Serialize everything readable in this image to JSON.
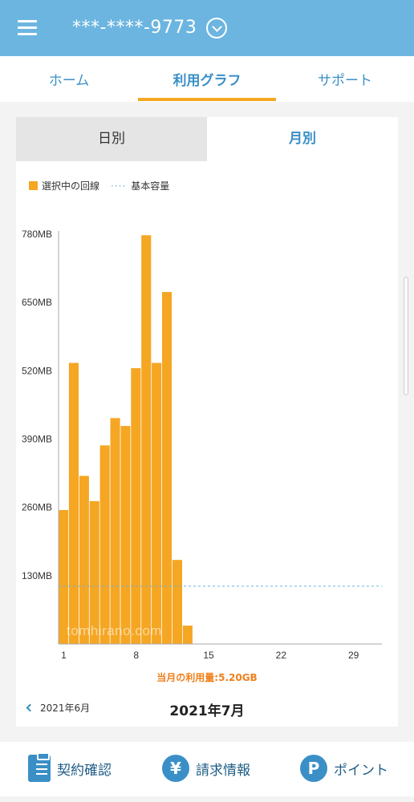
{
  "header": {
    "phone": "***-****-9773"
  },
  "tabs": [
    {
      "label": "ホーム"
    },
    {
      "label": "利用グラフ"
    },
    {
      "label": "サポート"
    }
  ],
  "segments": {
    "daily": "日別",
    "monthly": "月別"
  },
  "legend": {
    "selected": "選択中の回線",
    "dots": "····",
    "base": "基本容量"
  },
  "chart_data": {
    "type": "bar",
    "x": [
      1,
      2,
      3,
      4,
      5,
      6,
      7,
      8,
      9,
      10,
      11,
      12,
      13,
      14,
      15,
      16,
      17,
      18,
      19,
      20,
      21,
      22,
      23,
      24,
      25,
      26,
      27,
      28,
      29,
      30,
      31
    ],
    "values": [
      255,
      535,
      320,
      272,
      378,
      430,
      415,
      525,
      778,
      535,
      670,
      160,
      35,
      0,
      0,
      0,
      0,
      0,
      0,
      0,
      0,
      0,
      0,
      0,
      0,
      0,
      0,
      0,
      0,
      0,
      0
    ],
    "ylim": [
      0,
      780
    ],
    "yticks": [
      "130MB",
      "260MB",
      "390MB",
      "520MB",
      "650MB",
      "780MB"
    ],
    "xticks": [
      "1",
      "8",
      "15",
      "22",
      "29"
    ],
    "base_capacity": 110,
    "watermark": "tomhirano.com",
    "bar_color": "#f5a623",
    "base_color": "#6bb5e0"
  },
  "usage": {
    "total": "当月の利用量:5.20GB"
  },
  "month_nav": {
    "prev": "2021年6月",
    "current": "2021年7月"
  },
  "bottom_nav": [
    {
      "label": "契約確認",
      "icon": "clipboard-icon"
    },
    {
      "label": "請求情報",
      "icon": "yen-icon",
      "glyph": "¥"
    },
    {
      "label": "ポイント",
      "icon": "points-icon",
      "glyph": "P"
    }
  ]
}
